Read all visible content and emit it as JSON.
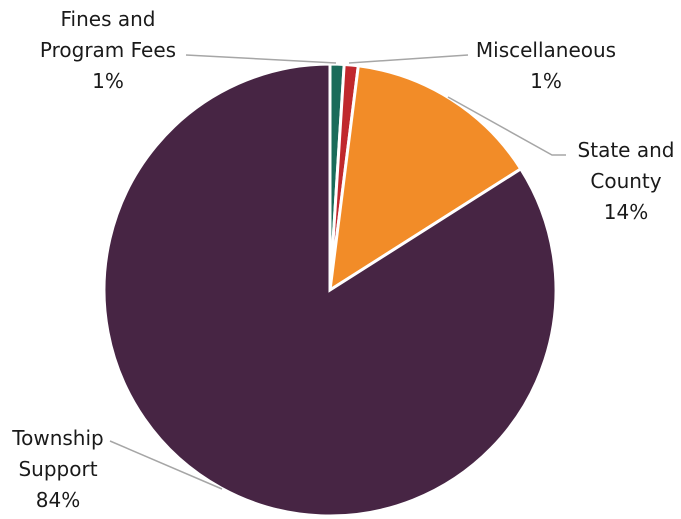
{
  "chart_data": {
    "type": "pie",
    "start_angle_deg": 0,
    "direction": "clockwise",
    "slices": [
      {
        "name": "Fines and Program Fees",
        "value": 1,
        "label_lines": [
          "Fines and",
          "Program Fees",
          "1%"
        ],
        "color": "#1a6b5a"
      },
      {
        "name": "Miscellaneous",
        "value": 1,
        "label_lines": [
          "Miscellaneous",
          "1%"
        ],
        "color": "#c0282d"
      },
      {
        "name": "State and County",
        "value": 14,
        "label_lines": [
          "State and",
          "County",
          "14%"
        ],
        "color": "#f28c28"
      },
      {
        "name": "Township Support",
        "value": 84,
        "label_lines": [
          "Township",
          "Support",
          "84%"
        ],
        "color": "#472544"
      }
    ]
  }
}
